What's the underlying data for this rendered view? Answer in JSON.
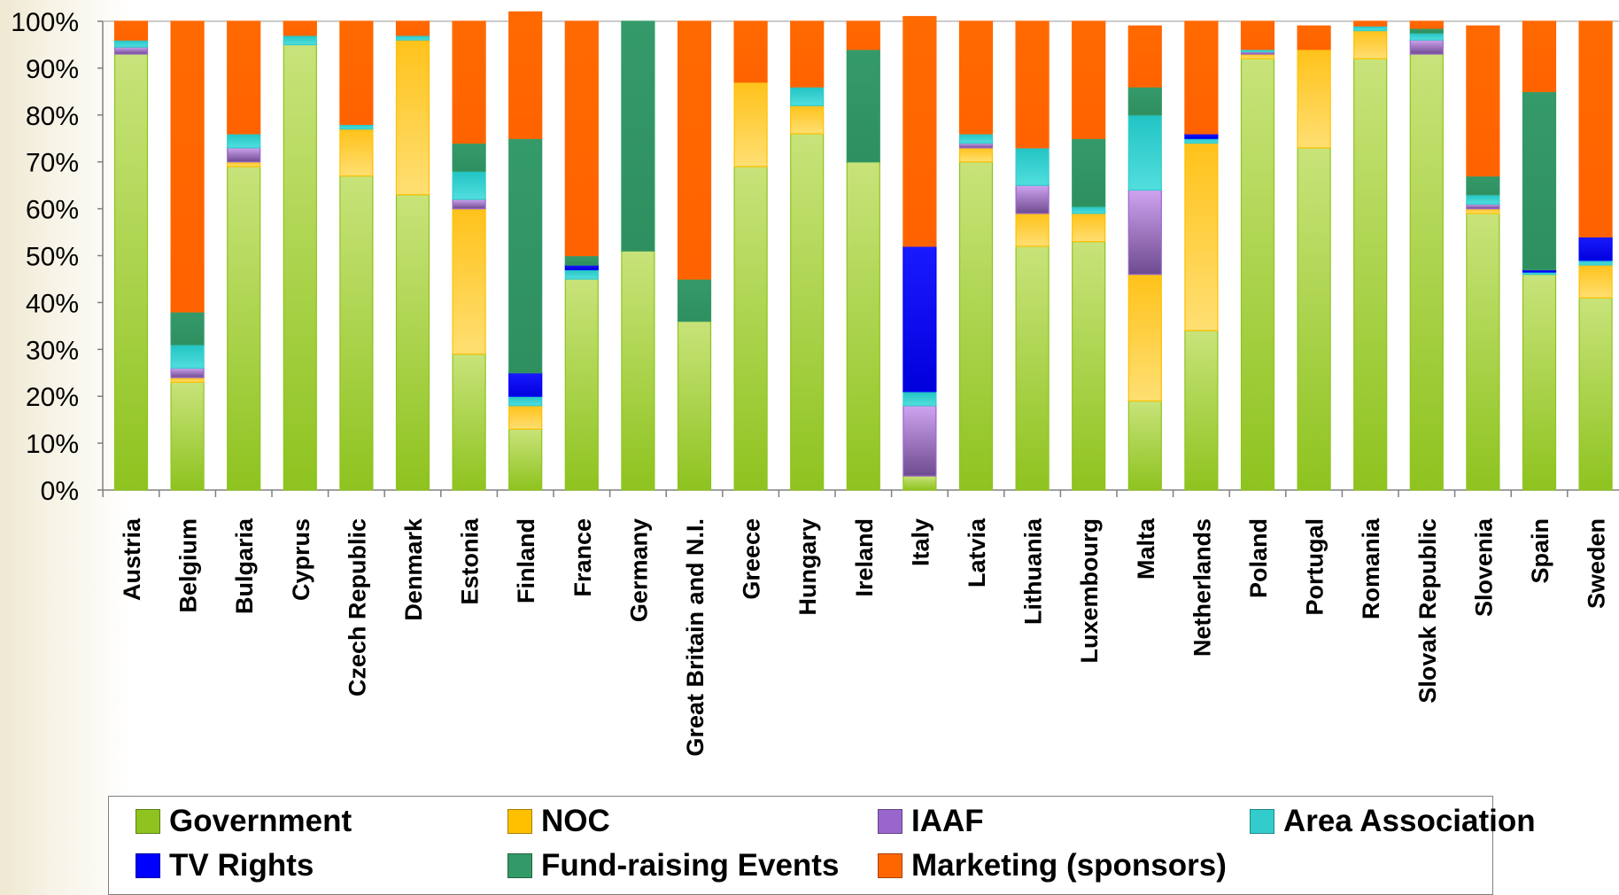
{
  "chart_data": {
    "type": "bar",
    "stacked": true,
    "percent": true,
    "ylim": [
      0,
      100
    ],
    "yticks": [
      "0%",
      "10%",
      "20%",
      "30%",
      "40%",
      "50%",
      "60%",
      "70%",
      "80%",
      "90%",
      "100%"
    ],
    "grid": false,
    "legend_position": "bottom",
    "categories": [
      "Austria",
      "Belgium",
      "Bulgaria",
      "Cyprus",
      "Czech Republic",
      "Denmark",
      "Estonia",
      "Finland",
      "France",
      "Germany",
      "Great Britain and N.I.",
      "Greece",
      "Hungary",
      "Ireland",
      "Italy",
      "Latvia",
      "Lithuania",
      "Luxembourg",
      "Malta",
      "Netherlands",
      "Poland",
      "Portugal",
      "Romania",
      "Slovak Republic",
      "Slovenia",
      "Spain",
      "Sweden"
    ],
    "series": [
      {
        "name": "Government",
        "color": "#8fc31f",
        "values": [
          93,
          23,
          69,
          95,
          67,
          63,
          29,
          13,
          45,
          51,
          36,
          69,
          76,
          70,
          3,
          70,
          52,
          53,
          19,
          34,
          92,
          73,
          92,
          93,
          59,
          46,
          41
        ]
      },
      {
        "name": "NOC",
        "color": "#ffc000",
        "values": [
          0,
          1,
          1,
          0,
          10,
          33,
          31,
          5,
          0,
          0,
          0,
          18,
          6,
          0,
          0,
          3,
          7,
          6,
          27,
          40,
          1,
          21,
          6,
          0,
          1,
          0,
          7
        ]
      },
      {
        "name": "IAAF",
        "color": "#9966cc",
        "values": [
          1.5,
          2,
          3,
          0,
          0,
          0,
          2,
          0,
          0,
          0,
          0,
          0,
          0,
          0,
          15,
          1,
          6,
          0,
          18,
          0,
          0.5,
          0,
          0,
          3,
          1,
          0,
          0
        ]
      },
      {
        "name": "Area Association",
        "color": "#33cccc",
        "values": [
          1.5,
          5,
          3,
          2,
          1,
          1,
          6,
          2,
          2,
          0,
          0,
          0,
          4,
          0,
          3,
          2,
          8,
          1.5,
          16,
          1,
          0.5,
          0,
          1,
          1.5,
          2,
          0.5,
          1
        ]
      },
      {
        "name": "TV Rights",
        "color": "#0000ff",
        "values": [
          0,
          0,
          0,
          0,
          0,
          0,
          0,
          5,
          1,
          0,
          0,
          0,
          0,
          0,
          31,
          0,
          0,
          0,
          0,
          1,
          0,
          0,
          0,
          0,
          0,
          0.5,
          5
        ]
      },
      {
        "name": "Fund-raising Events",
        "color": "#339966",
        "values": [
          0,
          7,
          0,
          0,
          0,
          0,
          6,
          50,
          2,
          49,
          9,
          0,
          0,
          24,
          0,
          0,
          0,
          14.5,
          6,
          0,
          0,
          0,
          0,
          1,
          4,
          38,
          0
        ]
      },
      {
        "name": "Marketing (sponsors)",
        "color": "#ff6600",
        "values": [
          4,
          62,
          24,
          3,
          22,
          3,
          26,
          27,
          50,
          0,
          55,
          13,
          14,
          6,
          49,
          24,
          27,
          25,
          13,
          24,
          6,
          5,
          1,
          1.5,
          32,
          15,
          46
        ]
      }
    ]
  }
}
